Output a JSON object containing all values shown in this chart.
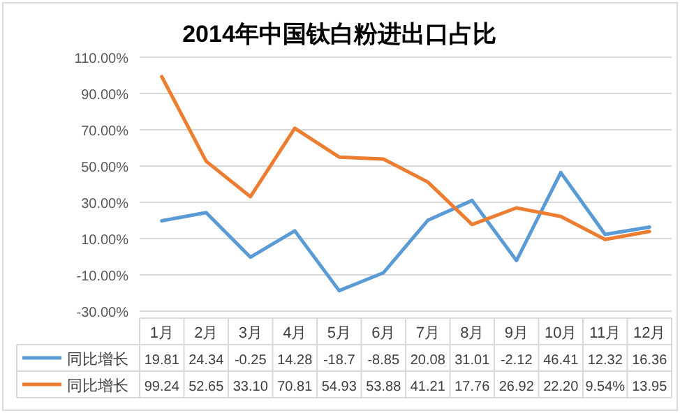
{
  "chart_data": {
    "type": "line",
    "title": "2014年中国钛白粉进出口占比",
    "categories": [
      "1月",
      "2月",
      "3月",
      "4月",
      "5月",
      "6月",
      "7月",
      "8月",
      "9月",
      "10月",
      "11月",
      "12月"
    ],
    "series": [
      {
        "name": "同比增长",
        "color": "#5b9bd5",
        "values": [
          19.81,
          24.34,
          -0.25,
          14.28,
          -18.7,
          -8.85,
          20.08,
          31.01,
          -2.12,
          46.41,
          12.32,
          16.36
        ],
        "value_labels": [
          "19.81",
          "24.34",
          "-0.25",
          "14.28",
          "-18.7",
          "-8.85",
          "20.08",
          "31.01",
          "-2.12",
          "46.41",
          "12.32",
          "16.36"
        ]
      },
      {
        "name": "同比增长",
        "color": "#ed7d31",
        "values": [
          99.24,
          52.65,
          33.1,
          70.81,
          54.93,
          53.88,
          41.21,
          17.76,
          26.92,
          22.2,
          9.54,
          13.95
        ],
        "value_labels": [
          "99.24",
          "52.65",
          "33.10",
          "70.81",
          "54.93",
          "53.88",
          "41.21",
          "17.76",
          "26.92",
          "22.20",
          "9.54%",
          "13.95"
        ]
      }
    ],
    "ylim": [
      -30,
      110
    ],
    "yticks": [
      {
        "value": -30,
        "label": "-30.00%"
      },
      {
        "value": -10,
        "label": "-10.00%"
      },
      {
        "value": 10,
        "label": "10.00%"
      },
      {
        "value": 30,
        "label": "30.00%"
      },
      {
        "value": 50,
        "label": "50.00%"
      },
      {
        "value": 70,
        "label": "70.00%"
      },
      {
        "value": 90,
        "label": "90.00%"
      },
      {
        "value": 110,
        "label": "110.00%"
      }
    ],
    "grid": "y",
    "legend": "bottom",
    "marker": "none",
    "line_style": "solid"
  }
}
